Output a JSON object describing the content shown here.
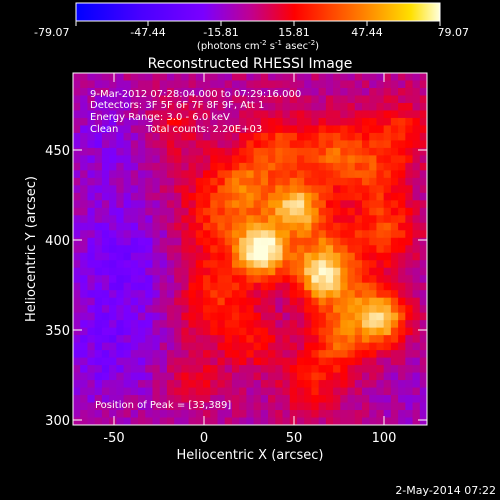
{
  "colorbar": {
    "ticks": [
      "-79.07",
      "-47.44",
      "-15.81",
      "15.81",
      "47.44",
      "79.07"
    ],
    "units_main": "(photons cm",
    "units_exp1": "-2",
    "units_mid1": " s",
    "units_exp2": "-1",
    "units_mid2": " asec",
    "units_exp3": "-2",
    "units_end": ")"
  },
  "overlay": {
    "line1": "9-Mar-2012 07:28:04.000 to 07:29:16.000",
    "line2": "Detectors: 3F 5F 6F 7F 8F 9F, Att 1",
    "line3": "Energy Range: 3.0 - 6.0 keV",
    "line4_a": "Clean",
    "line4_b": "Total counts: 2.20E+03",
    "peak": "Position of Peak = [33,389]"
  },
  "footer": {
    "date": "2-May-2014 07:22"
  },
  "chart_data": {
    "type": "heatmap",
    "title": "Reconstructed RHESSI Image",
    "xlabel": "Heliocentric X (arcsec)",
    "ylabel": "Heliocentric Y (arcsec)",
    "xlim": [
      -72,
      124
    ],
    "ylim": [
      297,
      484
    ],
    "x_ticks": [
      -50,
      0,
      50,
      100
    ],
    "y_ticks": [
      300,
      350,
      400,
      450
    ],
    "color_range": [
      -79.07,
      79.07
    ],
    "colormap": [
      "#0000ff",
      "#7a00ff",
      "#ff0000",
      "#ff9900",
      "#ffffdd"
    ],
    "peak": {
      "x": 33,
      "y": 389,
      "value": 79.07
    },
    "features": [
      {
        "x": 33,
        "y": 389,
        "value": 79.0,
        "sigma": 9
      },
      {
        "x": 52,
        "y": 412,
        "value": 62.0,
        "sigma": 9
      },
      {
        "x": 12,
        "y": 405,
        "value": 35.0,
        "sigma": 22
      },
      {
        "x": 68,
        "y": 388,
        "value": 38.0,
        "sigma": 14
      },
      {
        "x": 65,
        "y": 375,
        "value": 48.0,
        "sigma": 9
      },
      {
        "x": 100,
        "y": 352,
        "value": 52.0,
        "sigma": 9
      },
      {
        "x": 85,
        "y": 360,
        "value": 34.0,
        "sigma": 14
      },
      {
        "x": 5,
        "y": 360,
        "value": 30.0,
        "sigma": 15
      },
      {
        "x": 75,
        "y": 340,
        "value": 30.0,
        "sigma": 12
      },
      {
        "x": 28,
        "y": 340,
        "value": 22.0,
        "sigma": 10
      },
      {
        "x": 102,
        "y": 400,
        "value": 32.0,
        "sigma": 12
      },
      {
        "x": 72,
        "y": 440,
        "value": 38.0,
        "sigma": 14
      },
      {
        "x": 40,
        "y": 445,
        "value": 28.0,
        "sigma": 12
      },
      {
        "x": 108,
        "y": 452,
        "value": 28.0,
        "sigma": 12
      },
      {
        "x": 25,
        "y": 425,
        "value": 24.0,
        "sigma": 12
      },
      {
        "x": 95,
        "y": 428,
        "value": 24.0,
        "sigma": 12
      },
      {
        "x": -5,
        "y": 320,
        "value": 18.0,
        "sigma": 10
      },
      {
        "x": 60,
        "y": 318,
        "value": 22.0,
        "sigma": 12
      },
      {
        "x": -15,
        "y": 455,
        "value": 18.0,
        "sigma": 10
      },
      {
        "x": -40,
        "y": 385,
        "value": -20.0,
        "sigma": 28
      },
      {
        "x": -55,
        "y": 330,
        "value": -15.0,
        "sigma": 20
      },
      {
        "x": -55,
        "y": 450,
        "value": -12.0,
        "sigma": 16
      },
      {
        "x": 115,
        "y": 310,
        "value": -8.0,
        "sigma": 12
      }
    ]
  }
}
